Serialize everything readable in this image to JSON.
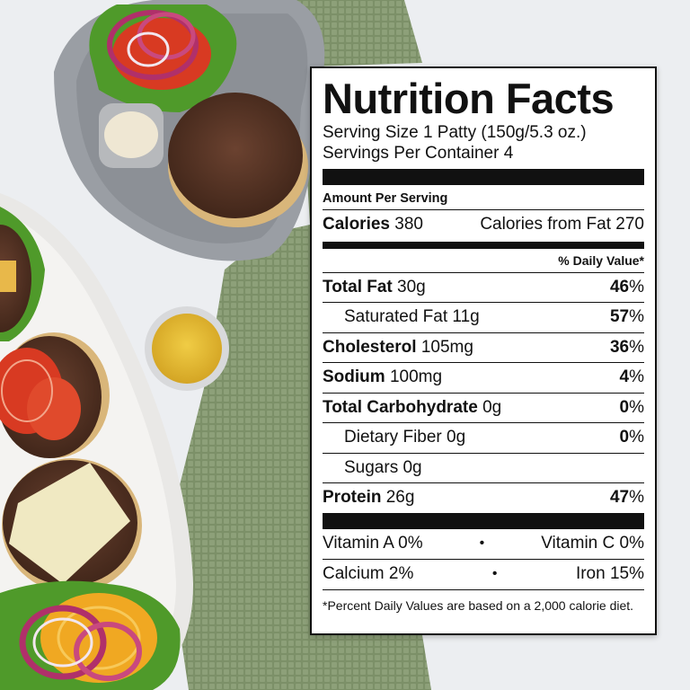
{
  "label": {
    "title": "Nutrition Facts",
    "serving_size": "Serving Size 1 Patty (150g/5.3 oz.)",
    "servings_per_container": "Servings Per Container 4",
    "amount_per_serving": "Amount Per Serving",
    "calories_label": "Calories",
    "calories_value": "380",
    "calories_from_fat": "Calories from Fat 270",
    "daily_value_header": "% Daily Value*",
    "nutrients": [
      {
        "name": "Total Fat",
        "amount": "30g",
        "percent": "46",
        "bold": true,
        "indent": false
      },
      {
        "name": "Saturated Fat",
        "amount": "11g",
        "percent": "57",
        "bold": false,
        "indent": true
      },
      {
        "name": "Cholesterol",
        "amount": "105mg",
        "percent": "36",
        "bold": true,
        "indent": false
      },
      {
        "name": "Sodium",
        "amount": "100mg",
        "percent": "4",
        "bold": true,
        "indent": false
      },
      {
        "name": "Total Carbohydrate",
        "amount": "0g",
        "percent": "0",
        "bold": true,
        "indent": false
      },
      {
        "name": "Dietary Fiber",
        "amount": "0g",
        "percent": "0",
        "bold": false,
        "indent": true
      },
      {
        "name": "Sugars",
        "amount": "0g",
        "percent": "",
        "bold": false,
        "indent": true
      },
      {
        "name": "Protein",
        "amount": "26g",
        "percent": "47",
        "bold": true,
        "indent": false
      }
    ],
    "vitamins": [
      {
        "left": "Vitamin A 0%",
        "right": "Vitamin C 0%"
      },
      {
        "left": "Calcium 2%",
        "right": "Iron 15%"
      }
    ],
    "bullet": "•",
    "footnote": "*Percent Daily Values are based on a 2,000 calorie diet."
  },
  "colors": {
    "table": "#eceef1",
    "towel": "#7f936b",
    "plate": "#9a9ea4",
    "platter": "#e9e8e6",
    "patty": "#5a3525",
    "bun": "#d9b67a",
    "tomato": "#d83a22",
    "lettuce": "#4f9a2a",
    "onion": "#b0306a",
    "mustard": "#e2b82e",
    "cheese": "#f0e9c2"
  }
}
